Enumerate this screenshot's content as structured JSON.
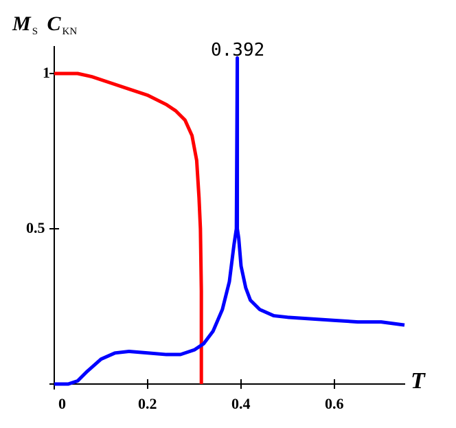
{
  "chart_data": {
    "type": "line",
    "title": "",
    "xlabel": "T",
    "ylabel_parts": [
      {
        "main": "M",
        "sub": "S"
      },
      {
        "main": "C",
        "sub": "KN"
      }
    ],
    "xlim": [
      0,
      0.75
    ],
    "ylim": [
      0,
      1.05
    ],
    "x_ticks": [
      {
        "value": 0,
        "label": "0"
      },
      {
        "value": 0.2,
        "label": "0.2"
      },
      {
        "value": 0.4,
        "label": "0.4"
      },
      {
        "value": 0.6,
        "label": "0.6"
      }
    ],
    "y_ticks": [
      {
        "value": 0.5,
        "label": "0.5"
      },
      {
        "value": 1,
        "label": "1"
      }
    ],
    "grid": false,
    "annotations": [
      {
        "text": "0.392",
        "x": 0.392,
        "y": 1.08
      }
    ],
    "series": [
      {
        "name": "M_S",
        "color": "#ff0000",
        "x": [
          0,
          0.05,
          0.08,
          0.12,
          0.16,
          0.2,
          0.24,
          0.26,
          0.28,
          0.295,
          0.305,
          0.31,
          0.313,
          0.315,
          0.315
        ],
        "y": [
          1.0,
          1.0,
          0.99,
          0.97,
          0.95,
          0.93,
          0.9,
          0.88,
          0.85,
          0.8,
          0.72,
          0.6,
          0.5,
          0.3,
          0.0
        ]
      },
      {
        "name": "C_KN",
        "color": "#0000ff",
        "x": [
          0,
          0.03,
          0.05,
          0.07,
          0.1,
          0.13,
          0.16,
          0.2,
          0.24,
          0.27,
          0.3,
          0.32,
          0.34,
          0.36,
          0.375,
          0.385,
          0.39,
          0.392,
          0.392,
          0.395,
          0.4,
          0.41,
          0.42,
          0.44,
          0.47,
          0.5,
          0.55,
          0.6,
          0.65,
          0.7,
          0.75
        ],
        "y": [
          0.0,
          0.0,
          0.01,
          0.04,
          0.08,
          0.1,
          0.105,
          0.1,
          0.095,
          0.095,
          0.11,
          0.13,
          0.17,
          0.24,
          0.33,
          0.45,
          0.5,
          1.05,
          0.5,
          0.47,
          0.38,
          0.31,
          0.27,
          0.24,
          0.22,
          0.215,
          0.21,
          0.205,
          0.2,
          0.2,
          0.19
        ]
      }
    ]
  }
}
